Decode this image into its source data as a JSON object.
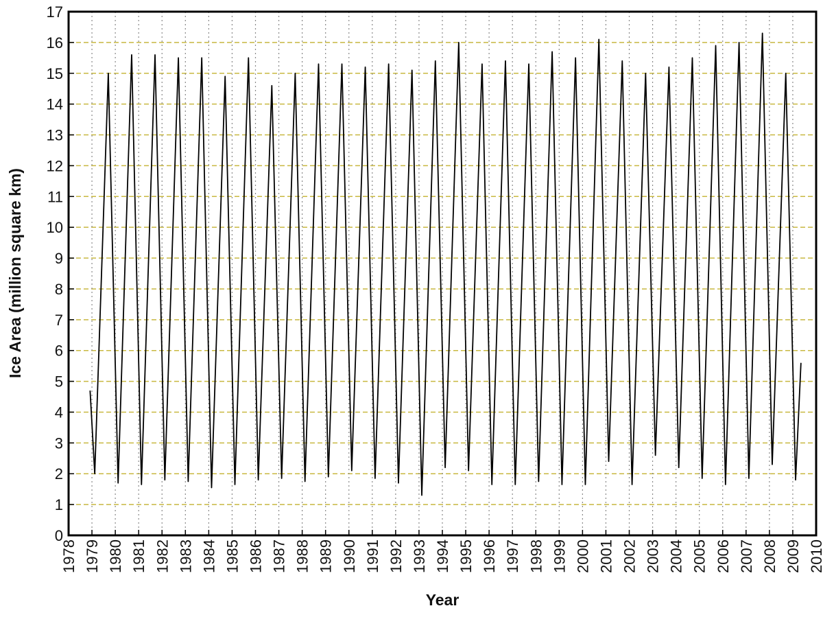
{
  "chart_data": {
    "type": "line",
    "xlabel": "Year",
    "ylabel": "Ice Area (million square km)",
    "x": [
      1978.92,
      1979.12,
      1979.7,
      1980.12,
      1980.7,
      1981.12,
      1981.7,
      1982.12,
      1982.7,
      1983.12,
      1983.7,
      1984.12,
      1984.7,
      1985.12,
      1985.7,
      1986.12,
      1986.7,
      1987.12,
      1987.7,
      1988.12,
      1988.7,
      1989.12,
      1989.7,
      1990.12,
      1990.7,
      1991.12,
      1991.7,
      1992.12,
      1992.7,
      1993.12,
      1993.7,
      1994.12,
      1994.7,
      1995.12,
      1995.7,
      1996.12,
      1996.7,
      1997.12,
      1997.7,
      1998.12,
      1998.7,
      1999.12,
      1999.7,
      2000.12,
      2000.7,
      2001.12,
      2001.7,
      2002.12,
      2002.7,
      2003.12,
      2003.7,
      2004.12,
      2004.7,
      2005.12,
      2005.7,
      2006.12,
      2006.7,
      2007.12,
      2007.7,
      2008.12,
      2008.7,
      2009.12,
      2009.35
    ],
    "series": [
      {
        "color": "#000000",
        "values": [
          4.7,
          2.0,
          15.0,
          1.7,
          15.6,
          1.65,
          15.6,
          1.8,
          15.5,
          1.75,
          15.5,
          1.55,
          14.9,
          1.65,
          15.5,
          1.8,
          14.6,
          1.85,
          15.0,
          1.75,
          15.3,
          1.9,
          15.3,
          2.1,
          15.2,
          1.85,
          15.3,
          1.7,
          15.1,
          1.3,
          15.4,
          2.2,
          16.0,
          2.1,
          15.3,
          1.65,
          15.4,
          1.65,
          15.3,
          1.75,
          15.7,
          1.65,
          15.5,
          1.65,
          16.1,
          2.4,
          15.4,
          1.65,
          15.0,
          2.6,
          15.2,
          2.2,
          15.5,
          1.85,
          15.9,
          1.65,
          16.0,
          1.85,
          16.3,
          2.3,
          15.0,
          1.8,
          5.6
        ]
      }
    ],
    "xlim": [
      1978,
      2010
    ],
    "xticks": [
      1978,
      1979,
      1980,
      1981,
      1982,
      1983,
      1984,
      1985,
      1986,
      1987,
      1988,
      1989,
      1990,
      1991,
      1992,
      1993,
      1994,
      1995,
      1996,
      1997,
      1998,
      1999,
      2000,
      2001,
      2002,
      2003,
      2004,
      2005,
      2006,
      2007,
      2008,
      2009,
      2010
    ],
    "ylim": [
      0,
      17
    ],
    "yticks": [
      0,
      1,
      2,
      3,
      4,
      5,
      6,
      7,
      8,
      9,
      10,
      11,
      12,
      13,
      14,
      15,
      16,
      17
    ],
    "grid": true
  }
}
